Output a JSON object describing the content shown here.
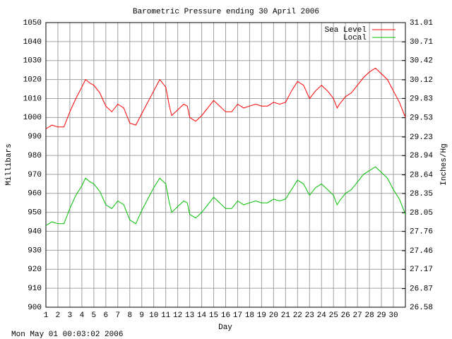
{
  "chart_data": {
    "type": "line",
    "title": "Barometric Pressure ending 30 April 2006",
    "x_label": "Day",
    "y_label": "Millibars",
    "y2_label": "Inches/Hg",
    "footer": "Mon May 01 00:03:02 2006",
    "grid": true,
    "legend": "top-right",
    "xlim": [
      1,
      31
    ],
    "xticks": [
      1,
      2,
      3,
      4,
      5,
      6,
      7,
      8,
      9,
      10,
      11,
      12,
      13,
      14,
      15,
      16,
      17,
      18,
      19,
      20,
      21,
      22,
      23,
      24,
      25,
      26,
      27,
      28,
      29,
      30
    ],
    "ylim": [
      900,
      1050
    ],
    "yticks": [
      900,
      910,
      920,
      930,
      940,
      950,
      960,
      970,
      980,
      990,
      1000,
      1010,
      1020,
      1030,
      1040,
      1050
    ],
    "y2lim": [
      26.58,
      31.01
    ],
    "y2ticks": [
      26.58,
      26.87,
      27.17,
      27.46,
      27.76,
      28.05,
      28.35,
      28.64,
      28.94,
      29.23,
      29.53,
      29.83,
      30.12,
      30.42,
      30.71,
      31.01
    ],
    "x": [
      1,
      1.5,
      2,
      2.5,
      3,
      3.5,
      4,
      4.3,
      4.7,
      5,
      5.5,
      6,
      6.5,
      7,
      7.5,
      8,
      8.5,
      9,
      9.5,
      10,
      10.5,
      11,
      11.3,
      11.5,
      12,
      12.5,
      12.8,
      13,
      13.5,
      14,
      14.5,
      15,
      15.5,
      16,
      16.5,
      17,
      17.5,
      18,
      18.5,
      19,
      19.5,
      20,
      20.5,
      21,
      21.5,
      22,
      22.5,
      23,
      23.5,
      24,
      24.5,
      25,
      25.3,
      25.5,
      26,
      26.5,
      27,
      27.5,
      28,
      28.5,
      29,
      29.5,
      30,
      30.5,
      31
    ],
    "series": [
      {
        "name": "Sea Level",
        "color": "#ff0000",
        "values": [
          994,
          996,
          995,
          995,
          1003,
          1010,
          1016,
          1020,
          1018,
          1017,
          1013,
          1006,
          1003,
          1007,
          1005,
          997,
          996,
          1002,
          1008,
          1014,
          1020,
          1016,
          1006,
          1001,
          1004,
          1007,
          1006,
          1000,
          998,
          1001,
          1005,
          1009,
          1006,
          1003,
          1003,
          1007,
          1005,
          1006,
          1007,
          1006,
          1006,
          1008,
          1007,
          1008,
          1014,
          1019,
          1017,
          1010,
          1014,
          1017,
          1014,
          1010,
          1005,
          1007,
          1011,
          1013,
          1017,
          1021,
          1024,
          1026,
          1023,
          1020,
          1014,
          1008,
          1000
        ]
      },
      {
        "name": "Local",
        "color": "#00c000",
        "values": [
          943,
          945,
          944,
          944,
          952,
          959,
          964,
          968,
          966,
          965,
          961,
          954,
          952,
          956,
          954,
          946,
          944,
          951,
          957,
          963,
          968,
          965,
          955,
          950,
          953,
          956,
          955,
          949,
          947,
          950,
          954,
          958,
          955,
          952,
          952,
          956,
          954,
          955,
          956,
          955,
          955,
          957,
          956,
          957,
          962,
          967,
          965,
          959,
          963,
          965,
          962,
          959,
          954,
          956,
          960,
          962,
          966,
          970,
          972,
          974,
          971,
          968,
          962,
          957,
          949
        ]
      }
    ]
  }
}
